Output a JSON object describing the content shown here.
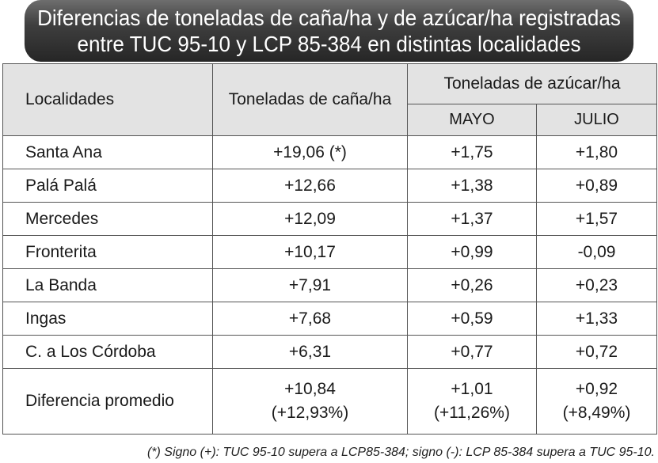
{
  "title": {
    "line1": "Diferencias de toneladas de caña/ha y de azúcar/ha registradas",
    "line2": "entre TUC 95-10 y LCP 85-384 en distintas localidades"
  },
  "headers": {
    "localidades": "Localidades",
    "cana": "Toneladas de caña/ha",
    "azucar": "Toneladas de azúcar/ha",
    "mayo": "MAYO",
    "julio": "JULIO"
  },
  "rows": [
    {
      "loc": "Santa Ana",
      "cana": "+19,06 (*)",
      "mayo": "+1,75",
      "julio": "+1,80"
    },
    {
      "loc": "Palá Palá",
      "cana": "+12,66",
      "mayo": "+1,38",
      "julio": "+0,89"
    },
    {
      "loc": "Mercedes",
      "cana": "+12,09",
      "mayo": "+1,37",
      "julio": "+1,57"
    },
    {
      "loc": "Fronterita",
      "cana": "+10,17",
      "mayo": "+0,99",
      "julio": "-0,09"
    },
    {
      "loc": "La Banda",
      "cana": "+7,91",
      "mayo": "+0,26",
      "julio": "+0,23"
    },
    {
      "loc": "Ingas",
      "cana": "+7,68",
      "mayo": "+0,59",
      "julio": "+1,33"
    },
    {
      "loc": "C. a Los Córdoba",
      "cana": "+6,31",
      "mayo": "+0,77",
      "julio": "+0,72"
    }
  ],
  "average": {
    "loc": "Diferencia promedio",
    "cana": "+10,84",
    "cana_pct": "(+12,93%)",
    "mayo": "+1,01",
    "mayo_pct": "(+11,26%)",
    "julio": "+0,92",
    "julio_pct": "(+8,49%)"
  },
  "footnote": "(*) Signo (+): TUC 95-10 supera a LCP85-384; signo (-): LCP 85-384 supera a TUC 95-10."
}
